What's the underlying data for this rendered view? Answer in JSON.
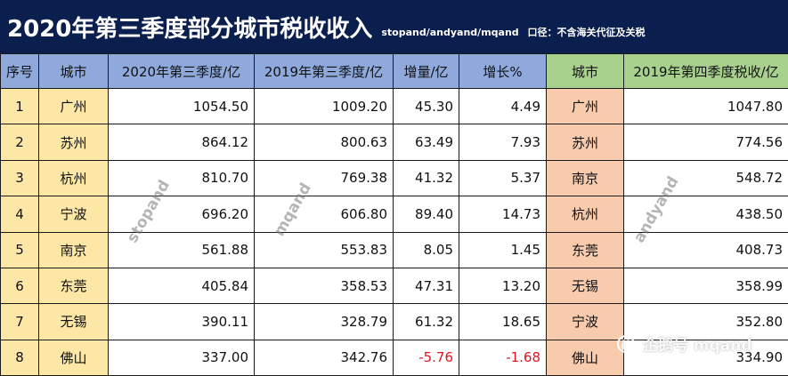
{
  "header": {
    "title": "2020年第三季度部分城市税收收入",
    "sources": "stopand/andyand/mqand",
    "note": "口径：不含海关代征及关税"
  },
  "columns": {
    "rank": "序号",
    "city": "城市",
    "q3_2020": "2020年第三季度/亿",
    "q3_2019": "2019年第三季度/亿",
    "increase": "增量/亿",
    "growth": "增长%",
    "city2": "城市",
    "q4_2019": "2019年第四季度税收/亿"
  },
  "rows": [
    {
      "rank": "1",
      "city": "广州",
      "q3_2020": "1054.50",
      "q3_2019": "1009.20",
      "increase": "45.30",
      "growth": "4.49",
      "city2": "广州",
      "q4_2019": "1047.80"
    },
    {
      "rank": "2",
      "city": "苏州",
      "q3_2020": "864.12",
      "q3_2019": "800.63",
      "increase": "63.49",
      "growth": "7.93",
      "city2": "苏州",
      "q4_2019": "774.56"
    },
    {
      "rank": "3",
      "city": "杭州",
      "q3_2020": "810.70",
      "q3_2019": "769.38",
      "increase": "41.32",
      "growth": "5.37",
      "city2": "南京",
      "q4_2019": "548.72"
    },
    {
      "rank": "4",
      "city": "宁波",
      "q3_2020": "696.20",
      "q3_2019": "606.80",
      "increase": "89.40",
      "growth": "14.73",
      "city2": "杭州",
      "q4_2019": "438.50"
    },
    {
      "rank": "5",
      "city": "南京",
      "q3_2020": "561.88",
      "q3_2019": "553.83",
      "increase": "8.05",
      "growth": "1.45",
      "city2": "东莞",
      "q4_2019": "408.73"
    },
    {
      "rank": "6",
      "city": "东莞",
      "q3_2020": "405.84",
      "q3_2019": "358.53",
      "increase": "47.31",
      "growth": "13.20",
      "city2": "无锡",
      "q4_2019": "358.99"
    },
    {
      "rank": "7",
      "city": "无锡",
      "q3_2020": "390.11",
      "q3_2019": "328.79",
      "increase": "61.32",
      "growth": "18.65",
      "city2": "宁波",
      "q4_2019": "352.80"
    },
    {
      "rank": "8",
      "city": "佛山",
      "q3_2020": "337.00",
      "q3_2019": "342.76",
      "increase": "-5.76",
      "growth": "-1.68",
      "city2": "佛山",
      "q4_2019": "334.90"
    }
  ],
  "negative_color": "#e0141e",
  "watermarks": [
    "stopand",
    "mqand",
    "andyand"
  ],
  "brand": {
    "text": "企鹅号 mqand",
    "icon": "penguin-logo-icon"
  }
}
